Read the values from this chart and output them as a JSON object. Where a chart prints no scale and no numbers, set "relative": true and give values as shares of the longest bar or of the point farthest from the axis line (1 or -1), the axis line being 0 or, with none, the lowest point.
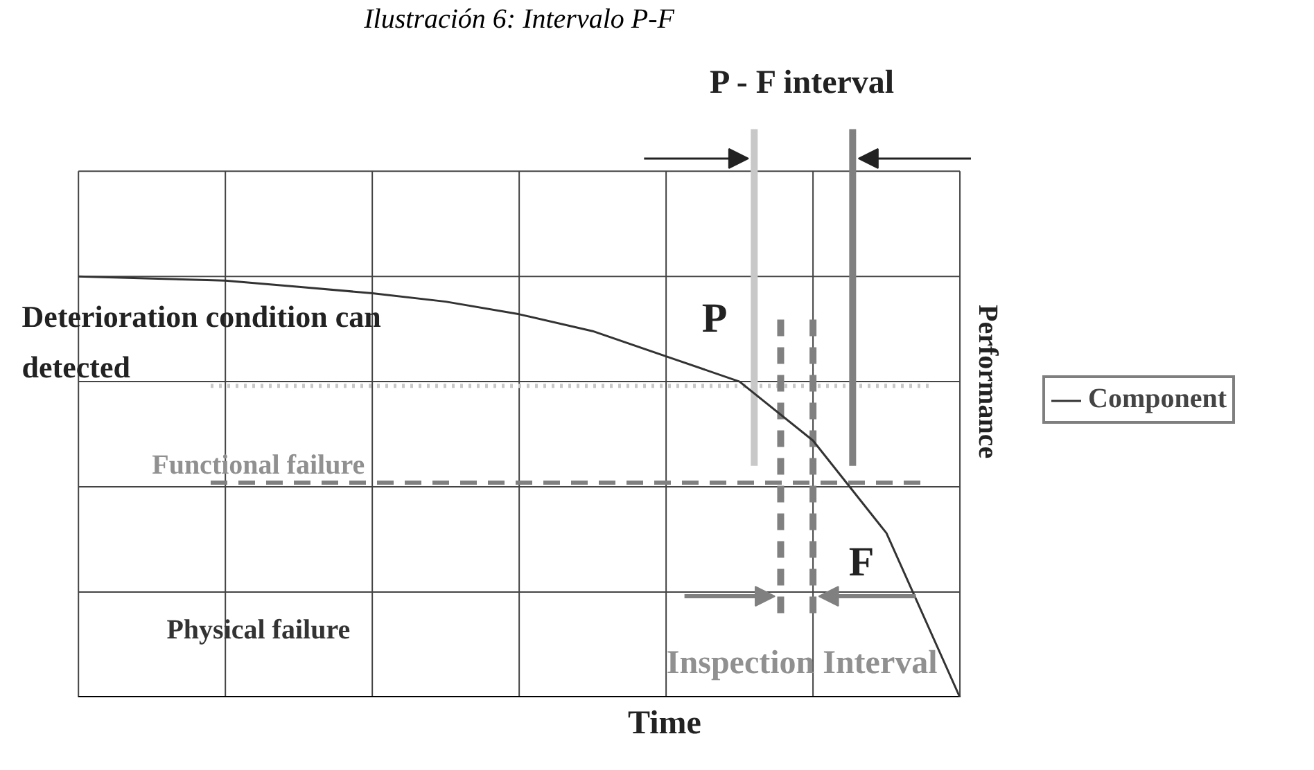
{
  "chart_data": {
    "type": "line",
    "title": "Ilustración 6: Intervalo P-F",
    "subtitle": "P - F interval",
    "xlabel": "Time",
    "ylabel": "Performance",
    "relative": true,
    "categories": [
      null,
      null,
      null,
      null,
      null,
      null,
      null,
      null,
      null,
      null,
      null,
      null,
      null
    ],
    "series": [
      {
        "name": "Component",
        "color": "#333333",
        "values": [
          1,
          0.995,
          0.99,
          0.975,
          0.96,
          0.94,
          0.91,
          0.87,
          0.81,
          0.75,
          0.61,
          0.39,
          0
        ]
      }
    ],
    "grid": true,
    "line_style": "solid",
    "legend": "right",
    "ref_lines": [
      {
        "axis": "y",
        "value": 0.74,
        "label": "Deterioration condition can detected",
        "color": "#c8c8c8",
        "line_style": "dotted"
      },
      {
        "axis": "y",
        "value": 0.51,
        "label": "Functional failure",
        "color": "#808080",
        "line_style": "dashed"
      },
      {
        "axis": "y",
        "value": 0,
        "label": "Physical failure",
        "color": "#000000",
        "line_style": "solid"
      }
    ],
    "annotations": [
      "P",
      "F",
      "Inspection Interval"
    ]
  }
}
